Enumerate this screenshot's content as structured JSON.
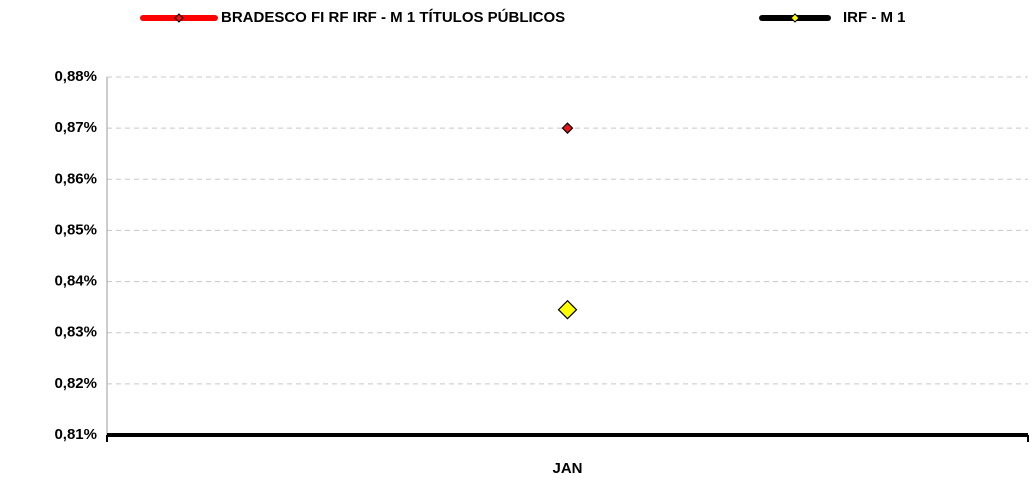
{
  "chart_data": {
    "type": "line",
    "categories": [
      "JAN"
    ],
    "series": [
      {
        "name": "BRADESCO FI RF IRF - M 1 TÍTULOS PÚBLICOS",
        "color": "#ff0000",
        "marker_color": "#e8141c",
        "values": [
          0.87
        ]
      },
      {
        "name": "IRF - M 1",
        "color": "#000000",
        "marker_color": "#ffff00",
        "values": [
          0.8345
        ]
      }
    ],
    "ylim": [
      0.81,
      0.88
    ],
    "yticks": [
      {
        "value": 0.81,
        "label": "0,81%"
      },
      {
        "value": 0.82,
        "label": "0,82%"
      },
      {
        "value": 0.83,
        "label": "0,83%"
      },
      {
        "value": 0.84,
        "label": "0,84%"
      },
      {
        "value": 0.85,
        "label": "0,85%"
      },
      {
        "value": 0.86,
        "label": "0,86%"
      },
      {
        "value": 0.87,
        "label": "0,87%"
      },
      {
        "value": 0.88,
        "label": "0,88%"
      }
    ],
    "grid": true,
    "legend": "top"
  }
}
